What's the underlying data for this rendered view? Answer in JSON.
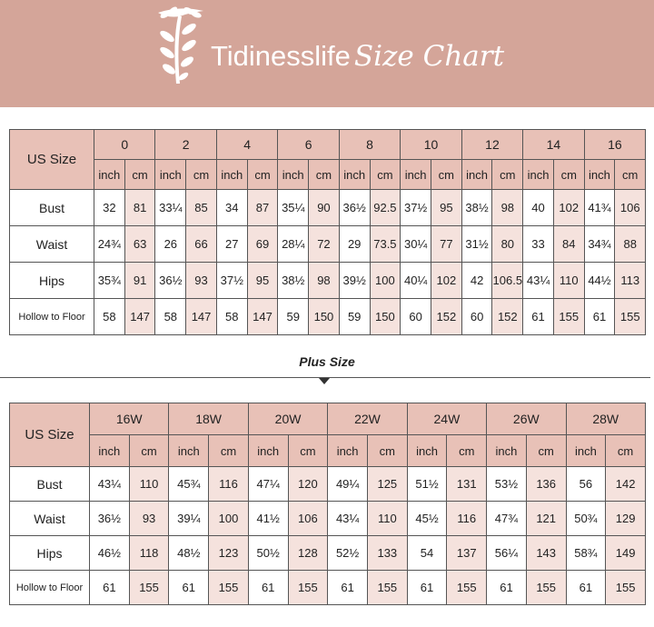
{
  "brand": {
    "name": "Tidinesslife",
    "subtitle": "Size Chart"
  },
  "colors": {
    "banner": "#d4a599",
    "header": "#e8c1b7",
    "alt_column": "#f5e2dd"
  },
  "logo_icon": "leaf-branch-icon",
  "standard": {
    "us_size_label": "US Size",
    "sizes": [
      "0",
      "2",
      "4",
      "6",
      "8",
      "10",
      "12",
      "14",
      "16"
    ],
    "units": [
      "inch",
      "cm"
    ],
    "rows": [
      {
        "label": "Bust",
        "values": [
          "32",
          "81",
          "33¼",
          "85",
          "34",
          "87",
          "35¼",
          "90",
          "36½",
          "92.5",
          "37½",
          "95",
          "38½",
          "98",
          "40",
          "102",
          "41¾",
          "106"
        ]
      },
      {
        "label": "Waist",
        "values": [
          "24¾",
          "63",
          "26",
          "66",
          "27",
          "69",
          "28¼",
          "72",
          "29",
          "73.5",
          "30¼",
          "77",
          "31½",
          "80",
          "33",
          "84",
          "34¾",
          "88"
        ]
      },
      {
        "label": "Hips",
        "values": [
          "35¾",
          "91",
          "36½",
          "93",
          "37½",
          "95",
          "38½",
          "98",
          "39½",
          "100",
          "40¼",
          "102",
          "42",
          "106.5",
          "43¼",
          "110",
          "44½",
          "113"
        ]
      },
      {
        "label": "Hollow to Floor",
        "values": [
          "58",
          "147",
          "58",
          "147",
          "58",
          "147",
          "59",
          "150",
          "59",
          "150",
          "60",
          "152",
          "60",
          "152",
          "61",
          "155",
          "61",
          "155"
        ]
      }
    ]
  },
  "plus_title": "Plus Size",
  "plus": {
    "us_size_label": "US Size",
    "sizes": [
      "16W",
      "18W",
      "20W",
      "22W",
      "24W",
      "26W",
      "28W"
    ],
    "units": [
      "inch",
      "cm"
    ],
    "rows": [
      {
        "label": "Bust",
        "values": [
          "43¼",
          "110",
          "45¾",
          "116",
          "47¼",
          "120",
          "49¼",
          "125",
          "51½",
          "131",
          "53½",
          "136",
          "56",
          "142"
        ]
      },
      {
        "label": "Waist",
        "values": [
          "36½",
          "93",
          "39¼",
          "100",
          "41½",
          "106",
          "43¼",
          "110",
          "45½",
          "116",
          "47¾",
          "121",
          "50¾",
          "129"
        ]
      },
      {
        "label": "Hips",
        "values": [
          "46½",
          "118",
          "48½",
          "123",
          "50½",
          "128",
          "52½",
          "133",
          "54",
          "137",
          "56¼",
          "143",
          "58¾",
          "149"
        ]
      },
      {
        "label": "Hollow to Floor",
        "values": [
          "61",
          "155",
          "61",
          "155",
          "61",
          "155",
          "61",
          "155",
          "61",
          "155",
          "61",
          "155",
          "61",
          "155"
        ]
      }
    ]
  }
}
